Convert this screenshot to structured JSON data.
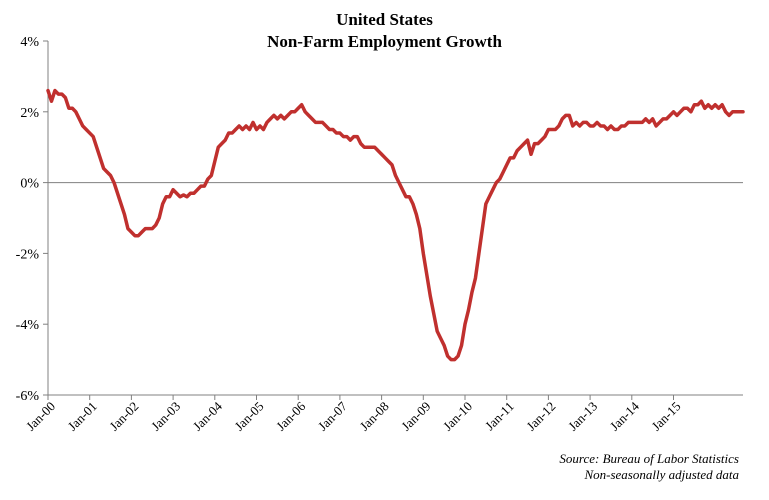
{
  "chart_data": {
    "type": "line",
    "title": "United States",
    "subtitle": "Non-Farm Employment Growth",
    "source_line1": "Source: Bureau of Labor Statistics",
    "source_line2": "Non-seasonally adjusted data",
    "xlabel": "",
    "ylabel": "",
    "ylim": [
      -6,
      4
    ],
    "yticks": [
      -6,
      -4,
      -2,
      0,
      2,
      4
    ],
    "ytick_labels": [
      "-6%",
      "-4%",
      "-2%",
      "0%",
      "2%",
      "4%"
    ],
    "xtick_labels": [
      "Jan-00",
      "Jan-01",
      "Jan-02",
      "Jan-03",
      "Jan-04",
      "Jan-05",
      "Jan-06",
      "Jan-07",
      "Jan-08",
      "Jan-09",
      "Jan-10",
      "Jan-11",
      "Jan-12",
      "Jan-13",
      "Jan-14",
      "Jan-15"
    ],
    "grid": false,
    "line_color": "#C0302E",
    "series": [
      {
        "x_start": "Jan-00",
        "frequency": "monthly",
        "values": [
          2.6,
          2.3,
          2.6,
          2.5,
          2.5,
          2.4,
          2.1,
          2.1,
          2.0,
          1.8,
          1.6,
          1.5,
          1.4,
          1.3,
          1.0,
          0.7,
          0.4,
          0.3,
          0.2,
          0.0,
          -0.3,
          -0.6,
          -0.9,
          -1.3,
          -1.4,
          -1.5,
          -1.5,
          -1.4,
          -1.3,
          -1.3,
          -1.3,
          -1.2,
          -1.0,
          -0.6,
          -0.4,
          -0.4,
          -0.2,
          -0.3,
          -0.4,
          -0.35,
          -0.4,
          -0.3,
          -0.3,
          -0.2,
          -0.1,
          -0.1,
          0.1,
          0.2,
          0.6,
          1.0,
          1.1,
          1.2,
          1.4,
          1.4,
          1.5,
          1.6,
          1.5,
          1.6,
          1.5,
          1.7,
          1.5,
          1.6,
          1.5,
          1.7,
          1.8,
          1.9,
          1.8,
          1.9,
          1.8,
          1.9,
          2.0,
          2.0,
          2.1,
          2.2,
          2.0,
          1.9,
          1.8,
          1.7,
          1.7,
          1.7,
          1.6,
          1.5,
          1.5,
          1.4,
          1.4,
          1.3,
          1.3,
          1.2,
          1.3,
          1.3,
          1.1,
          1.0,
          1.0,
          1.0,
          1.0,
          0.9,
          0.8,
          0.7,
          0.6,
          0.5,
          0.2,
          0.0,
          -0.2,
          -0.4,
          -0.4,
          -0.6,
          -0.9,
          -1.3,
          -2.0,
          -2.6,
          -3.2,
          -3.7,
          -4.2,
          -4.4,
          -4.6,
          -4.9,
          -5.0,
          -5.0,
          -4.9,
          -4.6,
          -4.0,
          -3.6,
          -3.1,
          -2.7,
          -2.0,
          -1.3,
          -0.6,
          -0.4,
          -0.2,
          0.0,
          0.1,
          0.3,
          0.5,
          0.7,
          0.7,
          0.9,
          1.0,
          1.1,
          1.2,
          0.8,
          1.1,
          1.1,
          1.2,
          1.3,
          1.5,
          1.5,
          1.5,
          1.6,
          1.8,
          1.9,
          1.9,
          1.6,
          1.7,
          1.6,
          1.7,
          1.7,
          1.6,
          1.6,
          1.7,
          1.6,
          1.6,
          1.5,
          1.6,
          1.5,
          1.5,
          1.6,
          1.6,
          1.7,
          1.7,
          1.7,
          1.7,
          1.7,
          1.8,
          1.7,
          1.8,
          1.6,
          1.7,
          1.8,
          1.8,
          1.9,
          2.0,
          1.9,
          2.0,
          2.1,
          2.1,
          2.0,
          2.2,
          2.2,
          2.3,
          2.1,
          2.2,
          2.1,
          2.2,
          2.1,
          2.2,
          2.0,
          1.9,
          2.0,
          2.0,
          2.0,
          2.0
        ]
      }
    ]
  }
}
